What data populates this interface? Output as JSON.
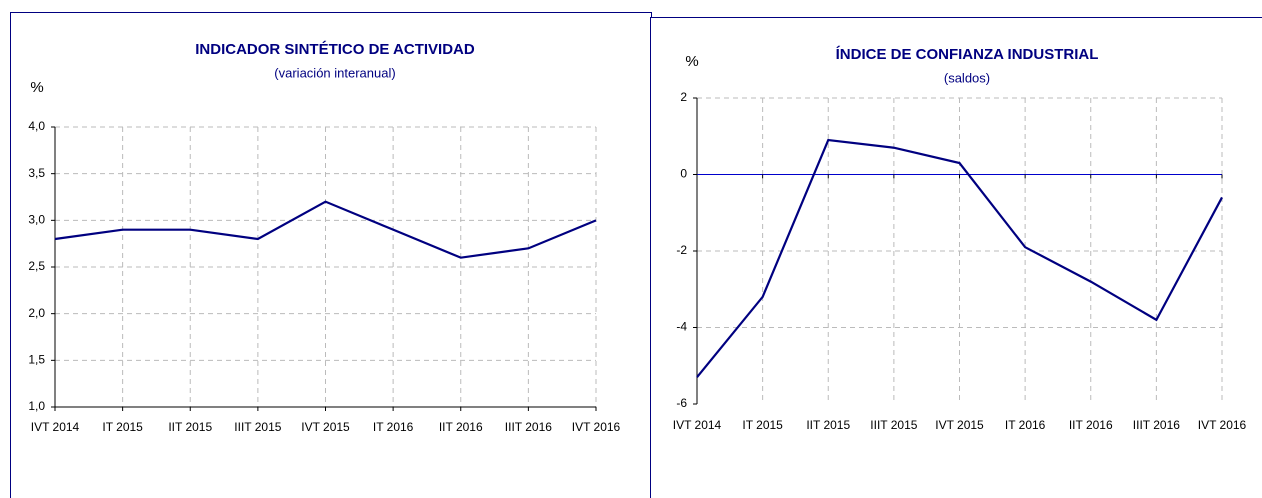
{
  "chart_data": [
    {
      "type": "line",
      "title": "INDICADOR SINTÉTICO DE ACTIVIDAD",
      "subtitle": "(variación interanual)",
      "ylabel": "%",
      "categories": [
        "IVT 2014",
        "IT 2015",
        "IIT 2015",
        "IIIT 2015",
        "IVT 2015",
        "IT 2016",
        "IIT 2016",
        "IIIT 2016",
        "IVT 2016"
      ],
      "values": [
        2.8,
        2.9,
        2.9,
        2.8,
        3.2,
        2.9,
        2.6,
        2.7,
        3.0
      ],
      "color": "#000080",
      "ylim": [
        1,
        4
      ],
      "yticks": [
        {
          "value": 1,
          "label": "1,0"
        },
        {
          "value": 1.5,
          "label": "1,5"
        },
        {
          "value": 2,
          "label": "2,0"
        },
        {
          "value": 2.5,
          "label": "2,5"
        },
        {
          "value": 3,
          "label": "3,0"
        },
        {
          "value": 3.5,
          "label": "3,5"
        },
        {
          "value": 4,
          "label": "4,0"
        }
      ],
      "grid": true
    },
    {
      "type": "line",
      "title": "ÍNDICE DE CONFIANZA INDUSTRIAL",
      "subtitle": "(saldos)",
      "ylabel": "%",
      "categories": [
        "IVT 2014",
        "IT 2015",
        "IIT 2015",
        "IIIT 2015",
        "IVT 2015",
        "IT 2016",
        "IIT 2016",
        "IIIT 2016",
        "IVT 2016"
      ],
      "values": [
        -5.3,
        -3.2,
        0.9,
        0.7,
        0.3,
        -1.9,
        -2.8,
        -3.8,
        -0.6
      ],
      "color": "#000080",
      "ylim": [
        -6,
        2
      ],
      "yticks": [
        -6,
        -4,
        -2,
        0,
        2
      ],
      "grid": true
    }
  ]
}
